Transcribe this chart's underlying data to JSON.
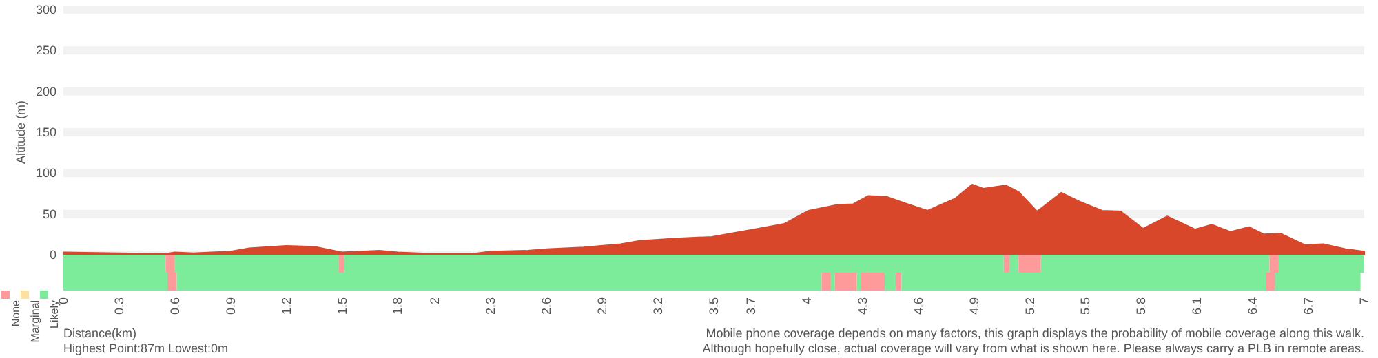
{
  "chart_data": [
    {
      "type": "area",
      "ylabel": "Altitude (m)",
      "x": [
        0,
        0.3,
        0.55,
        0.6,
        0.7,
        0.9,
        1.0,
        1.2,
        1.35,
        1.5,
        1.7,
        1.8,
        2.0,
        2.2,
        2.3,
        2.5,
        2.6,
        2.8,
        3.0,
        3.1,
        3.3,
        3.49,
        3.74,
        3.88,
        4.01,
        4.16,
        4.25,
        4.33,
        4.43,
        4.53,
        4.65,
        4.8,
        4.89,
        4.95,
        5.07,
        5.14,
        5.24,
        5.37,
        5.47,
        5.59,
        5.69,
        5.81,
        5.94,
        6.09,
        6.18,
        6.28,
        6.38,
        6.46,
        6.55,
        6.68,
        6.78,
        6.9,
        7.0
      ],
      "values": [
        3,
        2,
        1,
        3,
        2,
        4,
        8,
        11,
        10,
        3,
        5,
        3,
        1,
        1,
        4,
        5,
        7,
        9,
        13,
        17,
        20,
        22,
        32,
        38,
        54,
        61,
        62,
        72,
        71,
        63,
        54,
        69,
        86,
        81,
        85,
        77,
        53,
        76,
        65,
        54,
        53,
        32,
        47,
        31,
        37,
        28,
        34,
        25,
        26,
        12,
        13,
        7,
        4
      ],
      "color": "#d9472b",
      "xlim": [
        0,
        7
      ],
      "ylim": [
        0,
        300
      ],
      "yticks": [
        0,
        50,
        100,
        150,
        200,
        250,
        300
      ],
      "grid": "y",
      "tick_labels": "y"
    },
    {
      "type": "bar",
      "orientation": "horizontal",
      "stacked": true,
      "categories": [
        null,
        null
      ],
      "xlim": [
        0,
        7
      ],
      "xticks": [
        0,
        0.3,
        0.6,
        0.9,
        1.2,
        1.5,
        1.8,
        2,
        2.3,
        2.6,
        2.9,
        3.2,
        3.5,
        3.7,
        4,
        4.3,
        4.6,
        4.9,
        5.2,
        5.5,
        5.8,
        6.1,
        6.4,
        6.7,
        7
      ],
      "xlabel": "Distance(km)",
      "tick_labels": "x",
      "legend": "left",
      "series": [
        {
          "name": "Likely",
          "color": "#7ceb9a",
          "values": [
            0.55,
            0.56
          ]
        },
        {
          "name": "Marginal",
          "color": "#ffe0a0",
          "values": [
            null,
            null
          ]
        },
        {
          "name": "None",
          "color": "#ff9a9a",
          "values": [
            0.05,
            0.05
          ]
        },
        {
          "color": "#7ceb9a",
          "values": [
            0.88,
            3.47
          ]
        },
        {
          "color": "#ff9a9a",
          "values": [
            0.03,
            0.05
          ]
        },
        {
          "color": "#7ceb9a",
          "values": [
            3.55,
            0.02
          ]
        },
        {
          "color": "#ff9a9a",
          "values": [
            0.03,
            0.12
          ]
        },
        {
          "color": "#7ceb9a",
          "values": [
            0.05,
            0.02
          ]
        },
        {
          "color": "#ff9a9a",
          "values": [
            0.12,
            0.13
          ]
        },
        {
          "color": "#7ceb9a",
          "values": [
            1.23,
            0.06
          ]
        },
        {
          "color": "#ff9a9a",
          "values": [
            0.05,
            0.03
          ]
        },
        {
          "color": "#7ceb9a",
          "values": [
            0.46,
            1.96
          ]
        },
        {
          "color": "#ff9a9a",
          "values": [
            null,
            0.05
          ]
        },
        {
          "color": "#7ceb9a",
          "values": [
            null,
            0.46
          ]
        }
      ],
      "annotations": [
        "Highest Point:87m Lowest:0m",
        "Mobile phone coverage depends on many factors, this graph displays the probability of mobile coverage along this walk.",
        "Although hopefully close, actual coverage will vary from what is shown here. Please always carry a PLB in remote areas."
      ]
    }
  ]
}
